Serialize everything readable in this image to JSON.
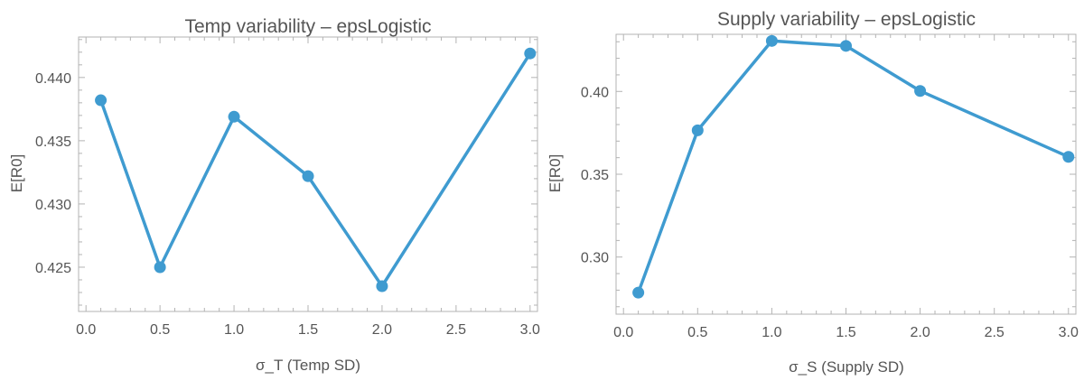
{
  "chart_data": [
    {
      "type": "line",
      "title": "Temp variability – epsLogistic",
      "xlabel": "σ_T (Temp SD)",
      "ylabel": "E[R0]",
      "x": [
        0.1,
        0.5,
        1.0,
        1.5,
        2.0,
        3.0
      ],
      "series": [
        {
          "values": [
            0.4382,
            0.425,
            0.4369,
            0.4322,
            0.4235,
            0.4419
          ]
        }
      ],
      "xlim": [
        -0.05,
        3.05
      ],
      "ylim": [
        0.4215,
        0.4432
      ],
      "xticks": [
        "0.0",
        "0.5",
        "1.0",
        "1.5",
        "2.0",
        "2.5",
        "3.0"
      ],
      "yticks": [
        "0.425",
        "0.430",
        "0.435",
        "0.440"
      ],
      "color": "#3f9bd0",
      "grid": false
    },
    {
      "type": "line",
      "title": "Supply variability – epsLogistic",
      "xlabel": "σ_S (Supply SD)",
      "ylabel": "E[R0]",
      "x": [
        0.1,
        0.5,
        1.0,
        1.5,
        2.0,
        3.0
      ],
      "series": [
        {
          "values": [
            0.2785,
            0.3765,
            0.4305,
            0.4275,
            0.4003,
            0.3605
          ]
        }
      ],
      "xlim": [
        -0.05,
        3.05
      ],
      "ylim": [
        0.2655,
        0.4345
      ],
      "xticks": [
        "0.0",
        "0.5",
        "1.0",
        "1.5",
        "2.0",
        "2.5",
        "3.0"
      ],
      "yticks": [
        "0.30",
        "0.35",
        "0.40"
      ],
      "color": "#3f9bd0",
      "grid": false
    }
  ]
}
